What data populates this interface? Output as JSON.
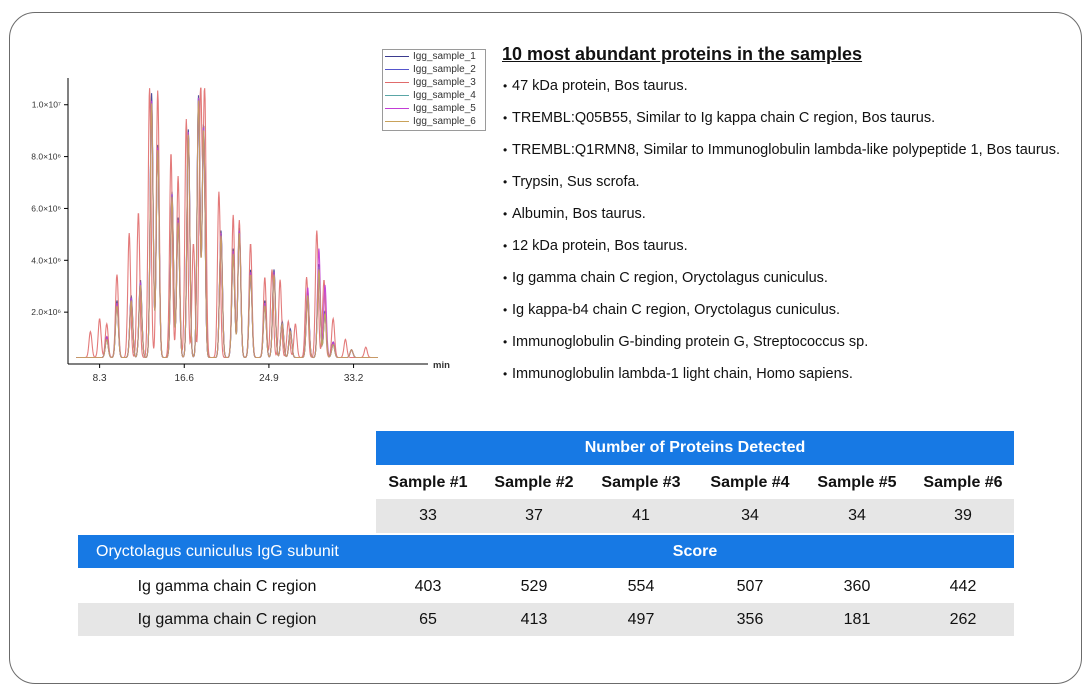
{
  "chart_data": {
    "type": "line",
    "x_unit_label": "min",
    "x_ticks": [
      "8.3",
      "16.6",
      "24.9",
      "33.2"
    ],
    "y_ticks": [
      "2.0×10⁶",
      "4.0×10⁶",
      "6.0×10⁶",
      "8.0×10⁶",
      "1.0×10⁷"
    ],
    "xlim": [
      5.2,
      40.5
    ],
    "ylim": [
      0,
      10800000
    ],
    "baseline": 250000,
    "peak_width": 0.14,
    "series": [
      {
        "name": "Igg_sample_1",
        "color": "#3b3b8f",
        "peaks": [
          [
            9.0,
            0.8
          ],
          [
            10.0,
            2.2
          ],
          [
            11.4,
            2.4
          ],
          [
            12.3,
            3.0
          ],
          [
            13.4,
            10.2
          ],
          [
            14.0,
            8.2
          ],
          [
            15.4,
            6.4
          ],
          [
            16.0,
            5.4
          ],
          [
            17.0,
            8.8
          ],
          [
            18.0,
            10.1
          ],
          [
            18.5,
            9.0
          ],
          [
            20.2,
            4.9
          ],
          [
            21.4,
            4.2
          ],
          [
            22.0,
            5.0
          ],
          [
            23.1,
            3.4
          ],
          [
            24.5,
            2.2
          ],
          [
            25.4,
            3.4
          ],
          [
            26.2,
            1.4
          ],
          [
            27.0,
            1.1
          ],
          [
            28.7,
            2.5
          ],
          [
            29.8,
            3.6
          ],
          [
            30.4,
            1.8
          ],
          [
            31.2,
            0.6
          ],
          [
            33.0,
            0.3
          ]
        ]
      },
      {
        "name": "Igg_sample_2",
        "color": "#5555cc",
        "peaks": [
          [
            9.0,
            0.7
          ],
          [
            10.0,
            2.0
          ],
          [
            11.4,
            2.2
          ],
          [
            12.3,
            2.8
          ],
          [
            13.4,
            9.9
          ],
          [
            14.0,
            8.0
          ],
          [
            15.4,
            6.2
          ],
          [
            16.0,
            5.2
          ],
          [
            17.0,
            8.6
          ],
          [
            18.0,
            10.0
          ],
          [
            18.5,
            8.8
          ],
          [
            20.2,
            4.7
          ],
          [
            21.4,
            4.0
          ],
          [
            22.0,
            4.8
          ],
          [
            23.1,
            3.2
          ],
          [
            24.5,
            2.0
          ],
          [
            25.4,
            3.2
          ],
          [
            26.2,
            1.3
          ],
          [
            27.0,
            1.0
          ],
          [
            28.7,
            2.4
          ],
          [
            29.8,
            3.4
          ],
          [
            30.4,
            1.7
          ],
          [
            31.2,
            0.5
          ],
          [
            33.0,
            0.3
          ]
        ]
      },
      {
        "name": "Igg_sample_3",
        "color": "#e06b6b",
        "peaks": [
          [
            7.4,
            1.0
          ],
          [
            8.3,
            1.5
          ],
          [
            9.0,
            1.3
          ],
          [
            10.0,
            3.2
          ],
          [
            11.2,
            4.8
          ],
          [
            12.1,
            5.6
          ],
          [
            13.2,
            10.5
          ],
          [
            14.0,
            10.3
          ],
          [
            15.3,
            7.9
          ],
          [
            16.0,
            7.0
          ],
          [
            16.8,
            9.2
          ],
          [
            17.5,
            4.4
          ],
          [
            18.2,
            10.5
          ],
          [
            18.6,
            10.3
          ],
          [
            20.0,
            6.4
          ],
          [
            21.4,
            5.5
          ],
          [
            22.0,
            5.3
          ],
          [
            23.1,
            4.4
          ],
          [
            24.5,
            3.1
          ],
          [
            25.2,
            3.4
          ],
          [
            26.0,
            3.0
          ],
          [
            26.8,
            1.4
          ],
          [
            27.5,
            1.3
          ],
          [
            28.6,
            3.1
          ],
          [
            29.6,
            4.9
          ],
          [
            30.3,
            3.0
          ],
          [
            31.2,
            1.5
          ],
          [
            32.4,
            0.7
          ],
          [
            34.4,
            0.4
          ]
        ]
      },
      {
        "name": "Igg_sample_4",
        "color": "#5aa6a6",
        "peaks": [
          [
            9.0,
            0.7
          ],
          [
            10.0,
            2.1
          ],
          [
            11.4,
            2.3
          ],
          [
            12.3,
            2.9
          ],
          [
            13.4,
            9.8
          ],
          [
            14.0,
            8.1
          ],
          [
            15.4,
            6.3
          ],
          [
            16.0,
            5.3
          ],
          [
            17.0,
            8.7
          ],
          [
            18.0,
            10.0
          ],
          [
            18.5,
            8.9
          ],
          [
            20.2,
            4.8
          ],
          [
            21.4,
            4.1
          ],
          [
            22.0,
            4.9
          ],
          [
            23.1,
            3.3
          ],
          [
            24.5,
            2.1
          ],
          [
            25.4,
            3.3
          ],
          [
            26.2,
            1.3
          ],
          [
            27.0,
            1.0
          ],
          [
            28.7,
            2.4
          ],
          [
            29.8,
            3.5
          ],
          [
            30.4,
            1.7
          ],
          [
            31.2,
            0.5
          ],
          [
            33.0,
            0.3
          ]
        ]
      },
      {
        "name": "Igg_sample_5",
        "color": "#c23cd6",
        "peaks": [
          [
            9.0,
            0.8
          ],
          [
            10.0,
            2.1
          ],
          [
            11.4,
            2.3
          ],
          [
            12.3,
            2.9
          ],
          [
            13.4,
            9.9
          ],
          [
            14.0,
            8.1
          ],
          [
            15.4,
            6.3
          ],
          [
            16.0,
            5.3
          ],
          [
            17.0,
            8.7
          ],
          [
            18.0,
            10.0
          ],
          [
            18.5,
            8.9
          ],
          [
            20.2,
            4.8
          ],
          [
            21.4,
            4.1
          ],
          [
            22.0,
            4.9
          ],
          [
            23.1,
            3.3
          ],
          [
            24.5,
            2.1
          ],
          [
            25.4,
            3.3
          ],
          [
            26.2,
            1.3
          ],
          [
            27.0,
            1.0
          ],
          [
            28.7,
            2.7
          ],
          [
            29.8,
            4.2
          ],
          [
            30.4,
            2.8
          ],
          [
            31.2,
            0.6
          ],
          [
            33.0,
            0.3
          ]
        ]
      },
      {
        "name": "Igg_sample_6",
        "color": "#c9a25a",
        "peaks": [
          [
            9.0,
            0.7
          ],
          [
            10.0,
            2.0
          ],
          [
            11.4,
            2.2
          ],
          [
            12.3,
            2.8
          ],
          [
            13.4,
            9.8
          ],
          [
            14.0,
            8.0
          ],
          [
            15.4,
            6.2
          ],
          [
            16.0,
            5.2
          ],
          [
            17.0,
            8.6
          ],
          [
            18.0,
            9.9
          ],
          [
            18.5,
            8.8
          ],
          [
            20.2,
            4.7
          ],
          [
            21.4,
            4.0
          ],
          [
            22.0,
            4.8
          ],
          [
            23.1,
            3.2
          ],
          [
            24.5,
            2.0
          ],
          [
            25.4,
            3.2
          ],
          [
            26.2,
            1.3
          ],
          [
            27.0,
            1.0
          ],
          [
            28.7,
            2.4
          ],
          [
            29.8,
            3.4
          ],
          [
            30.4,
            1.7
          ],
          [
            31.2,
            0.5
          ],
          [
            33.0,
            0.3
          ]
        ]
      }
    ]
  },
  "panel": {
    "title": "10 most abundant proteins in the samples",
    "bullet": "•",
    "proteins": [
      "47 kDa protein, Bos taurus.",
      "TREMBL:Q05B55, Similar to Ig kappa chain C region, Bos taurus.",
      "TREMBL:Q1RMN8, Similar to Immunoglobulin lambda-like polypeptide 1, Bos taurus.",
      "Trypsin, Sus scrofa.",
      "Albumin, Bos taurus.",
      "12 kDa protein, Bos taurus.",
      "Ig gamma chain C region, Oryctolagus cuniculus.",
      "Ig kappa-b4 chain C region, Oryctolagus cuniculus.",
      "Immunoglobulin G-binding protein G, Streptococcus sp.",
      "Immunoglobulin lambda-1 light chain, Homo sapiens."
    ]
  },
  "table": {
    "header": "Number of Proteins Detected",
    "samples": [
      "Sample #1",
      "Sample #2",
      "Sample #3",
      "Sample #4",
      "Sample #5",
      "Sample #6"
    ],
    "counts": [
      "33",
      "37",
      "41",
      "34",
      "34",
      "39"
    ],
    "subunit_label": "Oryctolagus cuniculus  IgG subunit",
    "score_label": "Score",
    "rows": [
      {
        "label": "Ig gamma chain C region",
        "values": [
          "403",
          "529",
          "554",
          "507",
          "360",
          "442"
        ]
      },
      {
        "label": "Ig gamma chain C region",
        "values": [
          "65",
          "413",
          "497",
          "356",
          "181",
          "262"
        ]
      }
    ]
  },
  "colors": {
    "accent": "#1779e4",
    "row_grey": "#e6e6e6",
    "card_border": "#6b6b6b"
  }
}
